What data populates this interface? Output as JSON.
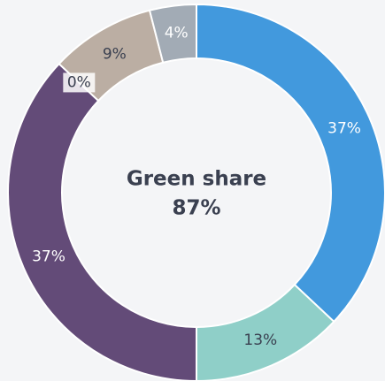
{
  "chart_data": {
    "type": "donut",
    "annotation": "Green share",
    "center_value": "87%",
    "values": [
      37,
      13,
      37,
      0,
      9,
      4
    ],
    "value_labels": [
      "37%",
      "13%",
      "37%",
      "0%",
      "9%",
      "4%"
    ],
    "colors": [
      "#4299dd",
      "#8fcfc8",
      "#634b78",
      "#d6cdc4",
      "#bbaea3",
      "#a2abb5"
    ],
    "label_colors": [
      "#ffffff",
      "#3a4050",
      "#ffffff",
      "#3a4050",
      "#3a4050",
      "#ffffff"
    ]
  }
}
